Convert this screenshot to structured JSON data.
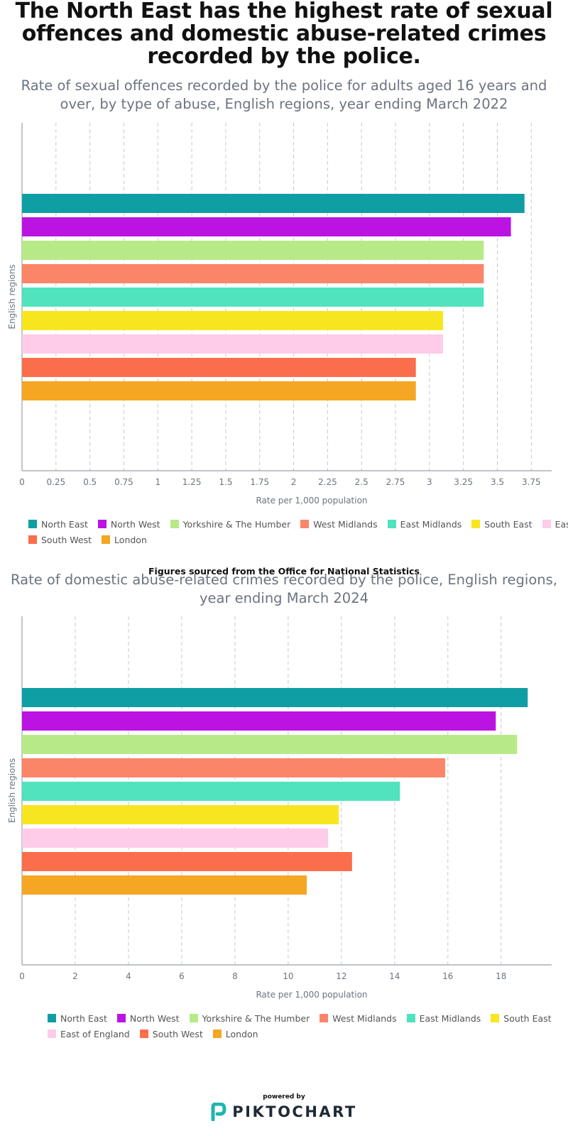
{
  "header": {
    "title": "The North East has the highest rate of sexual offences and domestic abuse-related crimes recorded by the police."
  },
  "source_note": "Figures sourced from the Office for National Statistics",
  "footer": {
    "powered_by": "powered by",
    "brand": "PIKTOCHART"
  },
  "colors": {
    "North East": "#0f9ea3",
    "North West": "#bb14e2",
    "Yorkshire & The Humber": "#b7ea87",
    "West Midlands": "#fb8569",
    "East Midlands": "#50e3bd",
    "South East": "#f7e61f",
    "East": "#fecbe9",
    "East of England": "#fecbe9",
    "South West": "#fa6e4b",
    "London": "#f5a623"
  },
  "chart_data": [
    {
      "type": "bar",
      "orientation": "horizontal",
      "title": "Rate of sexual offences recorded by the police for adults aged 16 years and over, by type of abuse, English regions, year ending March 2022",
      "xlabel": "Rate per 1,000 population",
      "ylabel": "English regions",
      "xlim": [
        0,
        3.9
      ],
      "x_ticks": [
        "0",
        "0.25",
        "0.5",
        "0.75",
        "1",
        "1.25",
        "1.5",
        "1.75",
        "2",
        "2.25",
        "2.5",
        "2.75",
        "3",
        "3.25",
        "3.5",
        "3.75"
      ],
      "grid": true,
      "legend_position": "bottom",
      "series": [
        {
          "name": "North East",
          "value": 3.7
        },
        {
          "name": "North West",
          "value": 3.6
        },
        {
          "name": "Yorkshire & The Humber",
          "value": 3.4
        },
        {
          "name": "West Midlands",
          "value": 3.4
        },
        {
          "name": "East Midlands",
          "value": 3.4
        },
        {
          "name": "South East",
          "value": 3.1
        },
        {
          "name": "East",
          "value": 3.1
        },
        {
          "name": "South West",
          "value": 2.9
        },
        {
          "name": "London",
          "value": 2.9
        }
      ]
    },
    {
      "type": "bar",
      "orientation": "horizontal",
      "title": "Rate of domestic abuse-related crimes recorded by the police, English regions, year ending March 2024",
      "xlabel": "Rate per 1,000 population",
      "ylabel": "English regions",
      "xlim": [
        0,
        19.9
      ],
      "x_ticks": [
        "0",
        "2",
        "4",
        "6",
        "8",
        "10",
        "12",
        "14",
        "16",
        "18"
      ],
      "grid": true,
      "legend_position": "bottom",
      "series": [
        {
          "name": "North East",
          "value": 19.0
        },
        {
          "name": "North West",
          "value": 17.8
        },
        {
          "name": "Yorkshire & The Humber",
          "value": 18.6
        },
        {
          "name": "West Midlands",
          "value": 15.9
        },
        {
          "name": "East Midlands",
          "value": 14.2
        },
        {
          "name": "South East",
          "value": 11.9
        },
        {
          "name": "East of England",
          "value": 11.5
        },
        {
          "name": "South West",
          "value": 12.4
        },
        {
          "name": "London",
          "value": 10.7
        }
      ]
    }
  ]
}
